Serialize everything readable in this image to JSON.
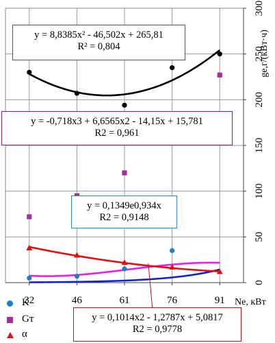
{
  "chart_data": {
    "type": "scatter",
    "categories": [
      "32",
      "46",
      "61",
      "76",
      "91"
    ],
    "x": [
      1,
      2,
      3,
      4,
      5
    ],
    "xlabel": "Ne, кВт",
    "ylabel": "ge,г/(кВт·ч)",
    "ylim": [
      0,
      300
    ],
    "yticks": [
      "0",
      "50",
      "100",
      "150",
      "200",
      "250",
      "300"
    ],
    "grid": true,
    "series": [
      {
        "name": "K",
        "marker": "circle",
        "color": "#1f7fc4",
        "values": [
          5,
          7,
          15,
          35,
          250
        ]
      },
      {
        "name": "Gт",
        "marker": "square",
        "color": "#a0309a",
        "values": [
          72,
          95,
          120,
          180,
          227
        ]
      },
      {
        "name": "α",
        "marker": "triangle",
        "color": "#dd1111",
        "values": [
          38,
          30,
          22,
          17,
          12
        ]
      },
      {
        "name": "",
        "marker": "circle",
        "color": "#000000",
        "values": [
          230,
          207,
          194,
          235,
          250
        ]
      }
    ],
    "trendlines": [
      {
        "kind": "poly2",
        "coeffs": [
          265.81,
          -46.502,
          8.8385
        ],
        "color": "#000000"
      },
      {
        "kind": "poly3",
        "coeffs": [
          15.781,
          -14.15,
          6.6565,
          -0.718
        ],
        "color": "#e81ee8"
      },
      {
        "kind": "exp",
        "coeffs": [
          0.1349,
          0.934
        ],
        "color": "#1226c7"
      },
      {
        "kind": "poly2",
        "coeffs": [
          5.0817,
          -1.2787,
          0.1014
        ],
        "color": "#dd1111"
      }
    ]
  },
  "equations": {
    "k": {
      "line1": "y = 8,8385x² - 46,502x + 265,81",
      "line2": "R² = 0,804"
    },
    "g": {
      "line1": "y = -0,718x3 + 6,6565x2 - 14,15x + 15,781",
      "line2": "R2 = 0,961"
    },
    "n": {
      "line1": "y = 0,1349e0,934x",
      "line2": "R2 = 0,9148"
    },
    "a": {
      "line1": "y = 0,1014x2 - 1,2787x + 5,0817",
      "line2": "R2 = 0,9778"
    }
  },
  "legend": {
    "items": [
      {
        "label": "K",
        "color": "#1f7fc4",
        "marker": "circle"
      },
      {
        "label": "Gт",
        "color": "#a0309a",
        "marker": "square"
      },
      {
        "label": "α",
        "color": "#dd1111",
        "marker": "triangle"
      }
    ]
  }
}
